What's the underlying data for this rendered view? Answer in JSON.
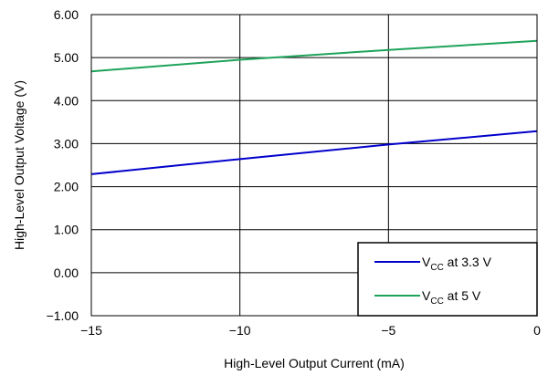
{
  "chart_data": {
    "type": "line",
    "title": "",
    "xlabel": "High-Level Output Current (mA)",
    "ylabel": "High-Level Output Voltage (V)",
    "xlim": [
      -15,
      0
    ],
    "ylim": [
      -1.0,
      6.0
    ],
    "x_ticks": [
      -15,
      -10,
      -5,
      0
    ],
    "x_tick_labels": [
      "−15",
      "−10",
      "−5",
      "0"
    ],
    "y_ticks": [
      -1,
      0,
      1,
      2,
      3,
      4,
      5,
      6
    ],
    "y_tick_labels": [
      "−1.00",
      "0.00",
      "1.00",
      "2.00",
      "3.00",
      "4.00",
      "5.00",
      "6.00"
    ],
    "grid": true,
    "legend_position": "bottom-right",
    "series": [
      {
        "name_main": "V",
        "name_sub": "CC",
        "name_rest": " at 3.3 V",
        "color": "#0000cc",
        "x": [
          -15,
          -10,
          -5,
          0
        ],
        "y": [
          2.29,
          2.64,
          2.98,
          3.29
        ]
      },
      {
        "name_main": "V",
        "name_sub": "CC",
        "name_rest": " at 5 V",
        "color": "#1fa35b",
        "x": [
          -15,
          -10,
          -5,
          0
        ],
        "y": [
          4.68,
          4.95,
          5.18,
          5.39
        ]
      }
    ]
  }
}
